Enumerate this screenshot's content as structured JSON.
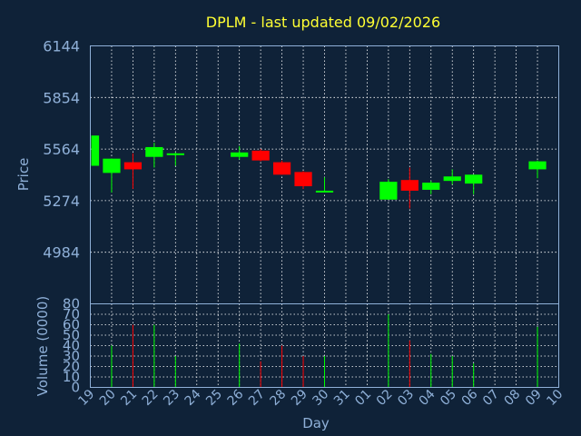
{
  "chart_data": {
    "type": "candlestick",
    "title": "DPLM - last updated 09/02/2026",
    "price_chart": {
      "ylabel": "Price",
      "yticks": [
        4984,
        5274,
        5564,
        5854,
        6144
      ],
      "ylim": [
        4694,
        6144
      ],
      "grid": true
    },
    "volume_chart": {
      "ylabel": "Volume (0000)",
      "yticks": [
        0,
        10,
        20,
        30,
        40,
        50,
        60,
        70,
        80
      ],
      "ylim": [
        0,
        80
      ],
      "grid": true
    },
    "xlabel": "Day",
    "x_tick_labels": [
      "19",
      "20",
      "21",
      "22",
      "23",
      "24",
      "25",
      "26",
      "27",
      "28",
      "29",
      "30",
      "31",
      "01",
      "02",
      "03",
      "04",
      "05",
      "06",
      "07",
      "08",
      "09",
      "10"
    ],
    "candles": [
      {
        "day": "19",
        "open": 5470,
        "close": 5640,
        "high": 5640,
        "low": 5470
      },
      {
        "day": "20",
        "open": 5430,
        "close": 5510,
        "high": 5510,
        "low": 5320
      },
      {
        "day": "21",
        "open": 5490,
        "close": 5450,
        "high": 5540,
        "low": 5340
      },
      {
        "day": "22",
        "open": 5520,
        "close": 5575,
        "high": 5600,
        "low": 5460
      },
      {
        "day": "23",
        "open": 5530,
        "close": 5540,
        "high": 5545,
        "low": 5470
      },
      {
        "day": "26",
        "open": 5520,
        "close": 5545,
        "high": 5580,
        "low": 5505
      },
      {
        "day": "27",
        "open": 5555,
        "close": 5500,
        "high": 5565,
        "low": 5495
      },
      {
        "day": "28",
        "open": 5490,
        "close": 5420,
        "high": 5500,
        "low": 5420
      },
      {
        "day": "29",
        "open": 5435,
        "close": 5355,
        "high": 5440,
        "low": 5340
      },
      {
        "day": "30",
        "open": 5320,
        "close": 5330,
        "high": 5405,
        "low": 5320
      },
      {
        "day": "02",
        "open": 5280,
        "close": 5380,
        "high": 5395,
        "low": 5280
      },
      {
        "day": "03",
        "open": 5390,
        "close": 5330,
        "high": 5460,
        "low": 5230
      },
      {
        "day": "04",
        "open": 5335,
        "close": 5375,
        "high": 5385,
        "low": 5310
      },
      {
        "day": "05",
        "open": 5385,
        "close": 5410,
        "high": 5450,
        "low": 5365
      },
      {
        "day": "06",
        "open": 5370,
        "close": 5420,
        "high": 5420,
        "low": 5310
      },
      {
        "day": "09",
        "open": 5450,
        "close": 5495,
        "high": 5500,
        "low": 5400
      }
    ],
    "volume": [
      {
        "day": "20",
        "value": 40,
        "up": true
      },
      {
        "day": "21",
        "value": 60,
        "up": false
      },
      {
        "day": "22",
        "value": 60,
        "up": true
      },
      {
        "day": "23",
        "value": 30,
        "up": true
      },
      {
        "day": "26",
        "value": 42,
        "up": true
      },
      {
        "day": "27",
        "value": 25,
        "up": false
      },
      {
        "day": "28",
        "value": 40,
        "up": false
      },
      {
        "day": "29",
        "value": 30,
        "up": false
      },
      {
        "day": "30",
        "value": 30,
        "up": true
      },
      {
        "day": "02",
        "value": 70,
        "up": true
      },
      {
        "day": "03",
        "value": 45,
        "up": false
      },
      {
        "day": "04",
        "value": 32,
        "up": true
      },
      {
        "day": "05",
        "value": 30,
        "up": true
      },
      {
        "day": "06",
        "value": 23,
        "up": true
      },
      {
        "day": "09",
        "value": 58,
        "up": true
      }
    ],
    "colors": {
      "background": "#0f2238",
      "up": "#00ff00",
      "down": "#ff0000",
      "text": "#8fb0d8",
      "title": "#ffff33"
    }
  }
}
